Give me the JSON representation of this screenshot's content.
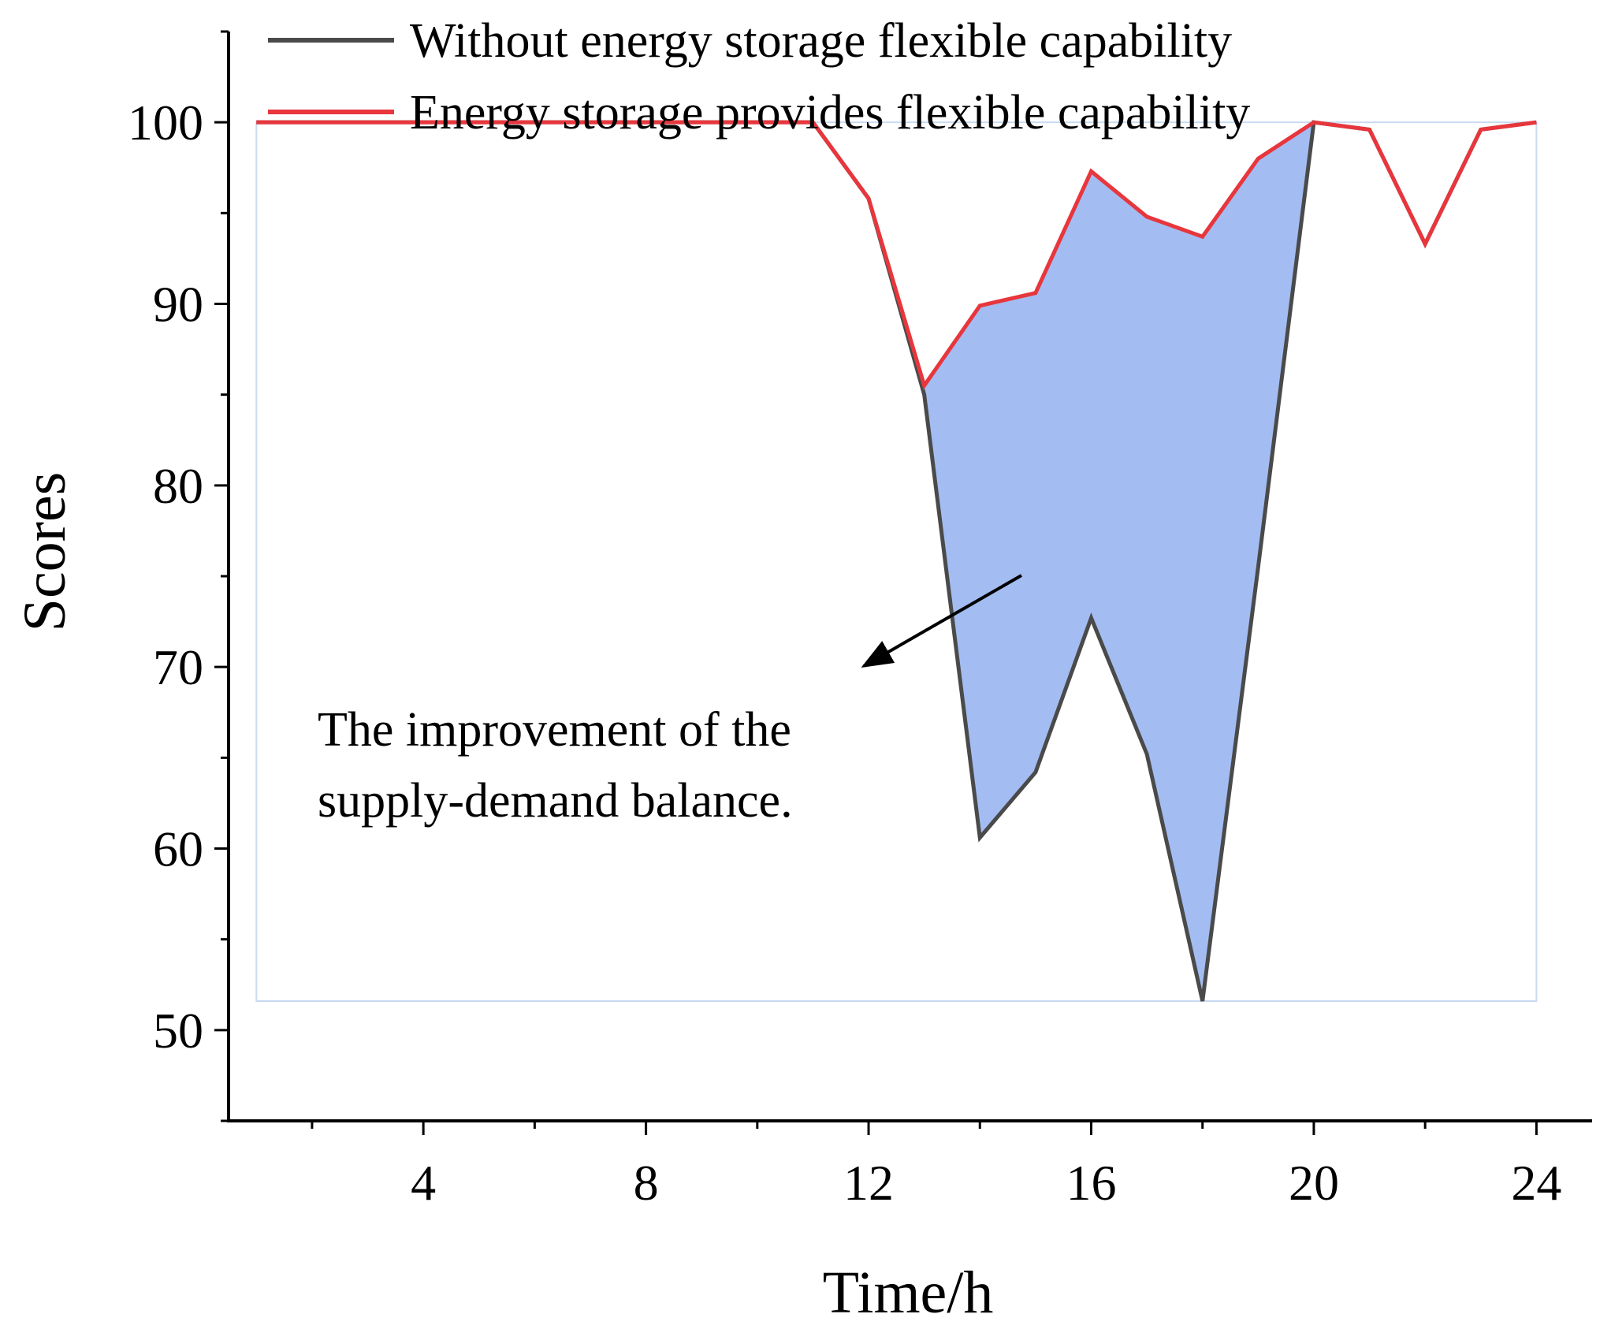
{
  "chart_data": {
    "type": "line",
    "title": "",
    "xlabel": "Time/h",
    "ylabel": "Scores",
    "xlim": [
      0.5,
      25
    ],
    "ylim": [
      45,
      105
    ],
    "xticks": [
      4,
      8,
      12,
      16,
      20,
      24
    ],
    "xtick_labels": [
      "4",
      "8",
      "12",
      "16",
      "20",
      "24"
    ],
    "yticks": [
      50,
      60,
      70,
      80,
      90,
      100
    ],
    "ytick_labels": [
      "50",
      "60",
      "70",
      "80",
      "90",
      "100"
    ],
    "grid": false,
    "legend_position": "top",
    "x": [
      1,
      2,
      3,
      4,
      5,
      6,
      7,
      8,
      9,
      10,
      11,
      12,
      13,
      14,
      15,
      16,
      17,
      18,
      19,
      20,
      21,
      22,
      23,
      24
    ],
    "series": [
      {
        "name": "Without energy storage flexible capability",
        "color": "#4a4a4a",
        "values": [
          100,
          100,
          100,
          100,
          100,
          100,
          100,
          100,
          100,
          100,
          100,
          95.8,
          85.0,
          60.6,
          64.2,
          72.7,
          65.2,
          51.6,
          75.5,
          100,
          99.6,
          93.3,
          99.6,
          100
        ]
      },
      {
        "name": "Energy storage provides flexible capability",
        "color": "#e8363d",
        "values": [
          100,
          100,
          100,
          100,
          100,
          100,
          100,
          100,
          100,
          100,
          100,
          95.8,
          85.5,
          89.9,
          90.6,
          97.3,
          94.8,
          93.7,
          98.0,
          100,
          99.6,
          93.3,
          99.6,
          100
        ]
      }
    ],
    "fill_between": {
      "x_start": 13,
      "x_end": 20,
      "color": "#a3bdf2"
    },
    "annotation": {
      "line1": "The improvement of the",
      "line2": "supply-demand balance."
    }
  }
}
